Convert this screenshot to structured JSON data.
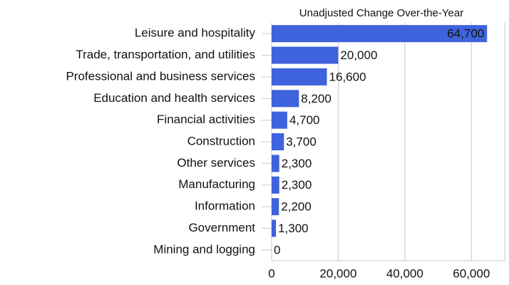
{
  "chart_data": {
    "type": "hbar",
    "title": "Unadjusted Change Over-the-Year",
    "categories": [
      "Leisure and hospitality",
      "Trade, transportation, and utilities",
      "Professional and business services",
      "Education and health services",
      "Financial activities",
      "Construction",
      "Other services",
      "Manufacturing",
      "Information",
      "Government",
      "Mining and logging"
    ],
    "values": [
      64700,
      20000,
      16600,
      8200,
      4700,
      3700,
      2300,
      2300,
      2200,
      1300,
      0
    ],
    "value_labels": [
      "64,700",
      "20,000",
      "16,600",
      "8,200",
      "4,700",
      "3,700",
      "2,300",
      "2,300",
      "2,200",
      "1,300",
      "0"
    ],
    "color": "#3f63dc",
    "xlim": [
      0,
      70000
    ],
    "xticks": [
      0,
      {
        "value": 20000,
        "label": "20,000"
      },
      {
        "value": 40000,
        "label": "40,000"
      },
      {
        "value": 60000,
        "label": "60,000"
      }
    ],
    "grid": true
  }
}
